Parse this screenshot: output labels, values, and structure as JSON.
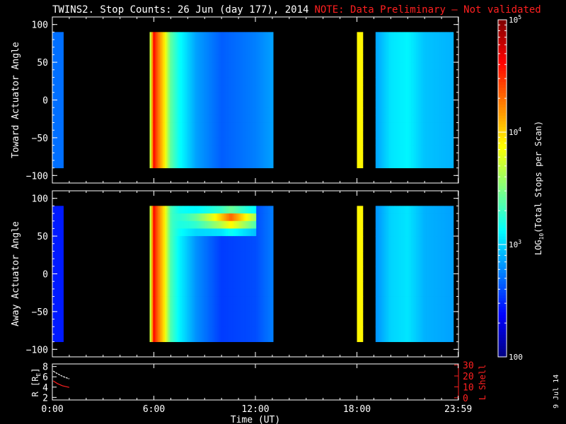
{
  "title": "TWINS2. Stop Counts: 26 Jun (day 177), 2014",
  "note": "NOTE: Data Preliminary – Not validated",
  "stamp": "9 Jul 14",
  "colors": {
    "background": "#000000",
    "axes": "#ffffff",
    "note": "#ff2020",
    "r_line": "#ffffff",
    "l_shell": "#ff2020"
  },
  "chart_data": [
    {
      "type": "heatmap",
      "name": "toward",
      "ylabel": "Toward Actuator Angle",
      "ylim": [
        -110,
        110
      ],
      "yticks": [
        100,
        50,
        0,
        -50,
        -100
      ],
      "xlim": [
        0,
        24
      ],
      "xticks": [
        0,
        6,
        12,
        18,
        23.983
      ],
      "log_counts_colorscale": [
        2,
        5
      ],
      "data_intervals_hours": [
        [
          0,
          0.65
        ],
        [
          5.75,
          13.05
        ],
        [
          18.0,
          18.35
        ],
        [
          19.1,
          23.7
        ]
      ],
      "profile_by_hour": [
        [
          0.0,
          2.7
        ],
        [
          0.65,
          2.7
        ],
        [
          5.75,
          3.5
        ],
        [
          6.0,
          4.6
        ],
        [
          6.3,
          4.25
        ],
        [
          6.6,
          3.95
        ],
        [
          7.0,
          3.4
        ],
        [
          7.5,
          3.15
        ],
        [
          8.5,
          2.85
        ],
        [
          10.0,
          2.65
        ],
        [
          12.0,
          2.75
        ],
        [
          13.05,
          2.85
        ],
        [
          18.0,
          3.9
        ],
        [
          18.35,
          3.9
        ],
        [
          19.1,
          2.85
        ],
        [
          20.0,
          3.05
        ],
        [
          21.0,
          3.1
        ],
        [
          22.0,
          2.95
        ],
        [
          23.7,
          2.9
        ]
      ]
    },
    {
      "type": "heatmap",
      "name": "away",
      "ylabel": "Away Actuator Angle",
      "ylim": [
        -110,
        110
      ],
      "yticks": [
        100,
        50,
        0,
        -50,
        -100
      ],
      "xlim": [
        0,
        24
      ],
      "xticks": [
        0,
        6,
        12,
        18,
        23.983
      ],
      "log_counts_colorscale": [
        2,
        5
      ],
      "data_intervals_hours": [
        [
          0,
          0.65
        ],
        [
          5.75,
          13.05
        ],
        [
          18.0,
          18.35
        ],
        [
          19.1,
          23.7
        ]
      ],
      "profile_by_hour": [
        [
          0.0,
          2.45
        ],
        [
          0.65,
          2.45
        ],
        [
          5.75,
          3.5
        ],
        [
          6.0,
          4.6
        ],
        [
          6.3,
          4.25
        ],
        [
          6.6,
          3.95
        ],
        [
          7.0,
          3.35
        ],
        [
          7.5,
          3.1
        ],
        [
          8.5,
          2.8
        ],
        [
          10.0,
          2.55
        ],
        [
          12.0,
          2.6
        ],
        [
          13.05,
          2.75
        ],
        [
          18.0,
          3.9
        ],
        [
          18.35,
          3.9
        ],
        [
          19.1,
          2.8
        ],
        [
          20.0,
          3.0
        ],
        [
          21.0,
          3.05
        ],
        [
          22.0,
          2.9
        ],
        [
          23.7,
          2.85
        ]
      ],
      "enhancement": {
        "angle_range": [
          55,
          90
        ],
        "hours": [
          6.5,
          12.0
        ],
        "peak_log_counts": 4.55,
        "peak_hour": 10.5
      }
    },
    {
      "type": "line",
      "name": "orbit",
      "ylabel": "R [RE]",
      "ylabel_parts": [
        "R [R",
        "E",
        "]"
      ],
      "ylim": [
        1.5,
        8.5
      ],
      "yticks": [
        2,
        4,
        6,
        8
      ],
      "y2label": "L Shell",
      "y2lim": [
        -2,
        31
      ],
      "y2ticks": [
        0,
        10,
        20,
        30
      ],
      "xlim": [
        0,
        24
      ],
      "xticks": [
        0,
        6,
        12,
        18,
        23.983
      ],
      "xticklabels": [
        "0:00",
        "6:00",
        "12:00",
        "18:00",
        "23:59"
      ],
      "xlabel": "Time (UT)",
      "series": [
        {
          "name": "R",
          "color": "#ffffff",
          "x": [
            0.05,
            0.3,
            0.6,
            1.0
          ],
          "y": [
            7.1,
            6.6,
            6.1,
            5.6
          ]
        },
        {
          "name": "L Shell",
          "color": "#ff2020",
          "x": [
            0.05,
            0.3,
            0.6,
            1.0
          ],
          "y": [
            15.5,
            13.0,
            11.0,
            9.5
          ]
        }
      ]
    },
    {
      "type": "colorbar",
      "label": "LOG10(Total Stops per Scan)",
      "label_parts": [
        "LOG",
        "10",
        "(Total Stops per Scan)"
      ],
      "range": [
        2,
        5
      ],
      "ticks": [
        {
          "v": 5,
          "label": "10",
          "exp": "5"
        },
        {
          "v": 4,
          "label": "10",
          "exp": "4"
        },
        {
          "v": 3,
          "label": "10",
          "exp": "3"
        },
        {
          "v": 2,
          "label": "100",
          "exp": ""
        }
      ]
    }
  ]
}
